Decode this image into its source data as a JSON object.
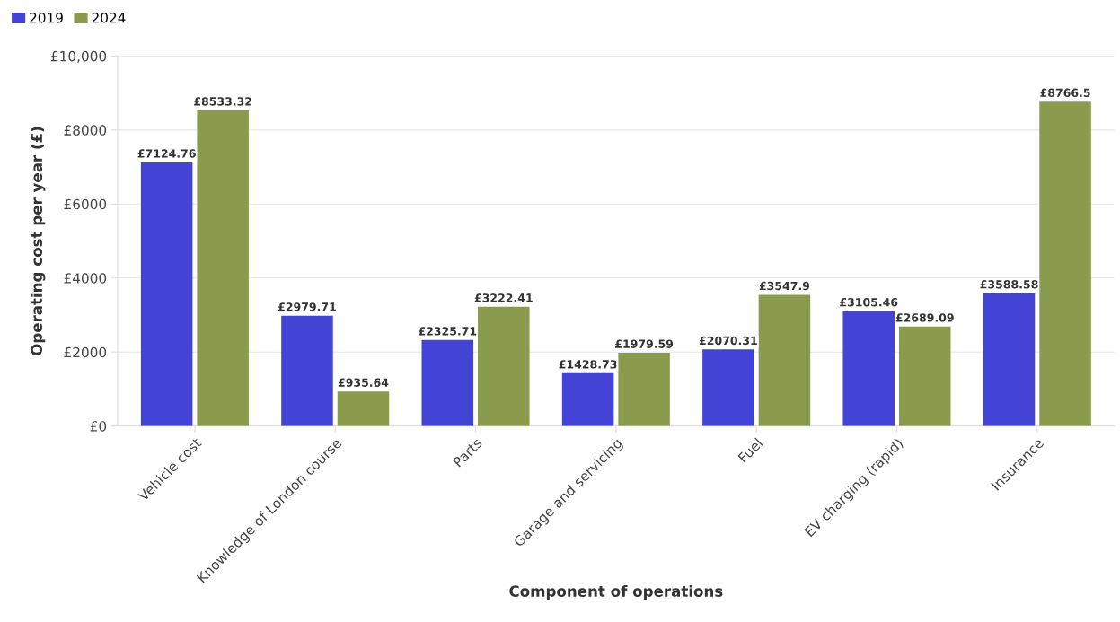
{
  "chart_data": {
    "type": "bar",
    "xlabel": "Component of operations",
    "ylabel": "Operating cost per year (£)",
    "categories": [
      "Vehicle cost",
      "Knowledge of London course",
      "Parts",
      "Garage and servicing",
      "Fuel",
      "EV charging (rapid)",
      "Insurance"
    ],
    "series": [
      {
        "name": "2019",
        "color": "#4343d6",
        "values": [
          7124.76,
          2979.71,
          2325.71,
          1428.73,
          2070.31,
          3105.46,
          3588.58
        ],
        "value_labels": [
          "£7124.76",
          "£2979.71",
          "£2325.71",
          "£1428.73",
          "£2070.31",
          "£3105.46",
          "£3588.58"
        ]
      },
      {
        "name": "2024",
        "color": "#8a9b4e",
        "values": [
          8533.32,
          935.64,
          3222.41,
          1979.59,
          3547.9,
          2689.09,
          8766.5
        ],
        "value_labels": [
          "£8533.32",
          "£935.64",
          "£3222.41",
          "£1979.59",
          "£3547.9",
          "£2689.09",
          "£8766.5"
        ]
      }
    ],
    "ylim": [
      0,
      10000
    ],
    "yticks": [
      {
        "value": 0,
        "label": "£0"
      },
      {
        "value": 2000,
        "label": "£2000"
      },
      {
        "value": 4000,
        "label": "£4000"
      },
      {
        "value": 6000,
        "label": "£6000"
      },
      {
        "value": 8000,
        "label": "£8000"
      },
      {
        "value": 10000,
        "label": "£10,000"
      }
    ],
    "grid": "y",
    "legend": "top left"
  }
}
